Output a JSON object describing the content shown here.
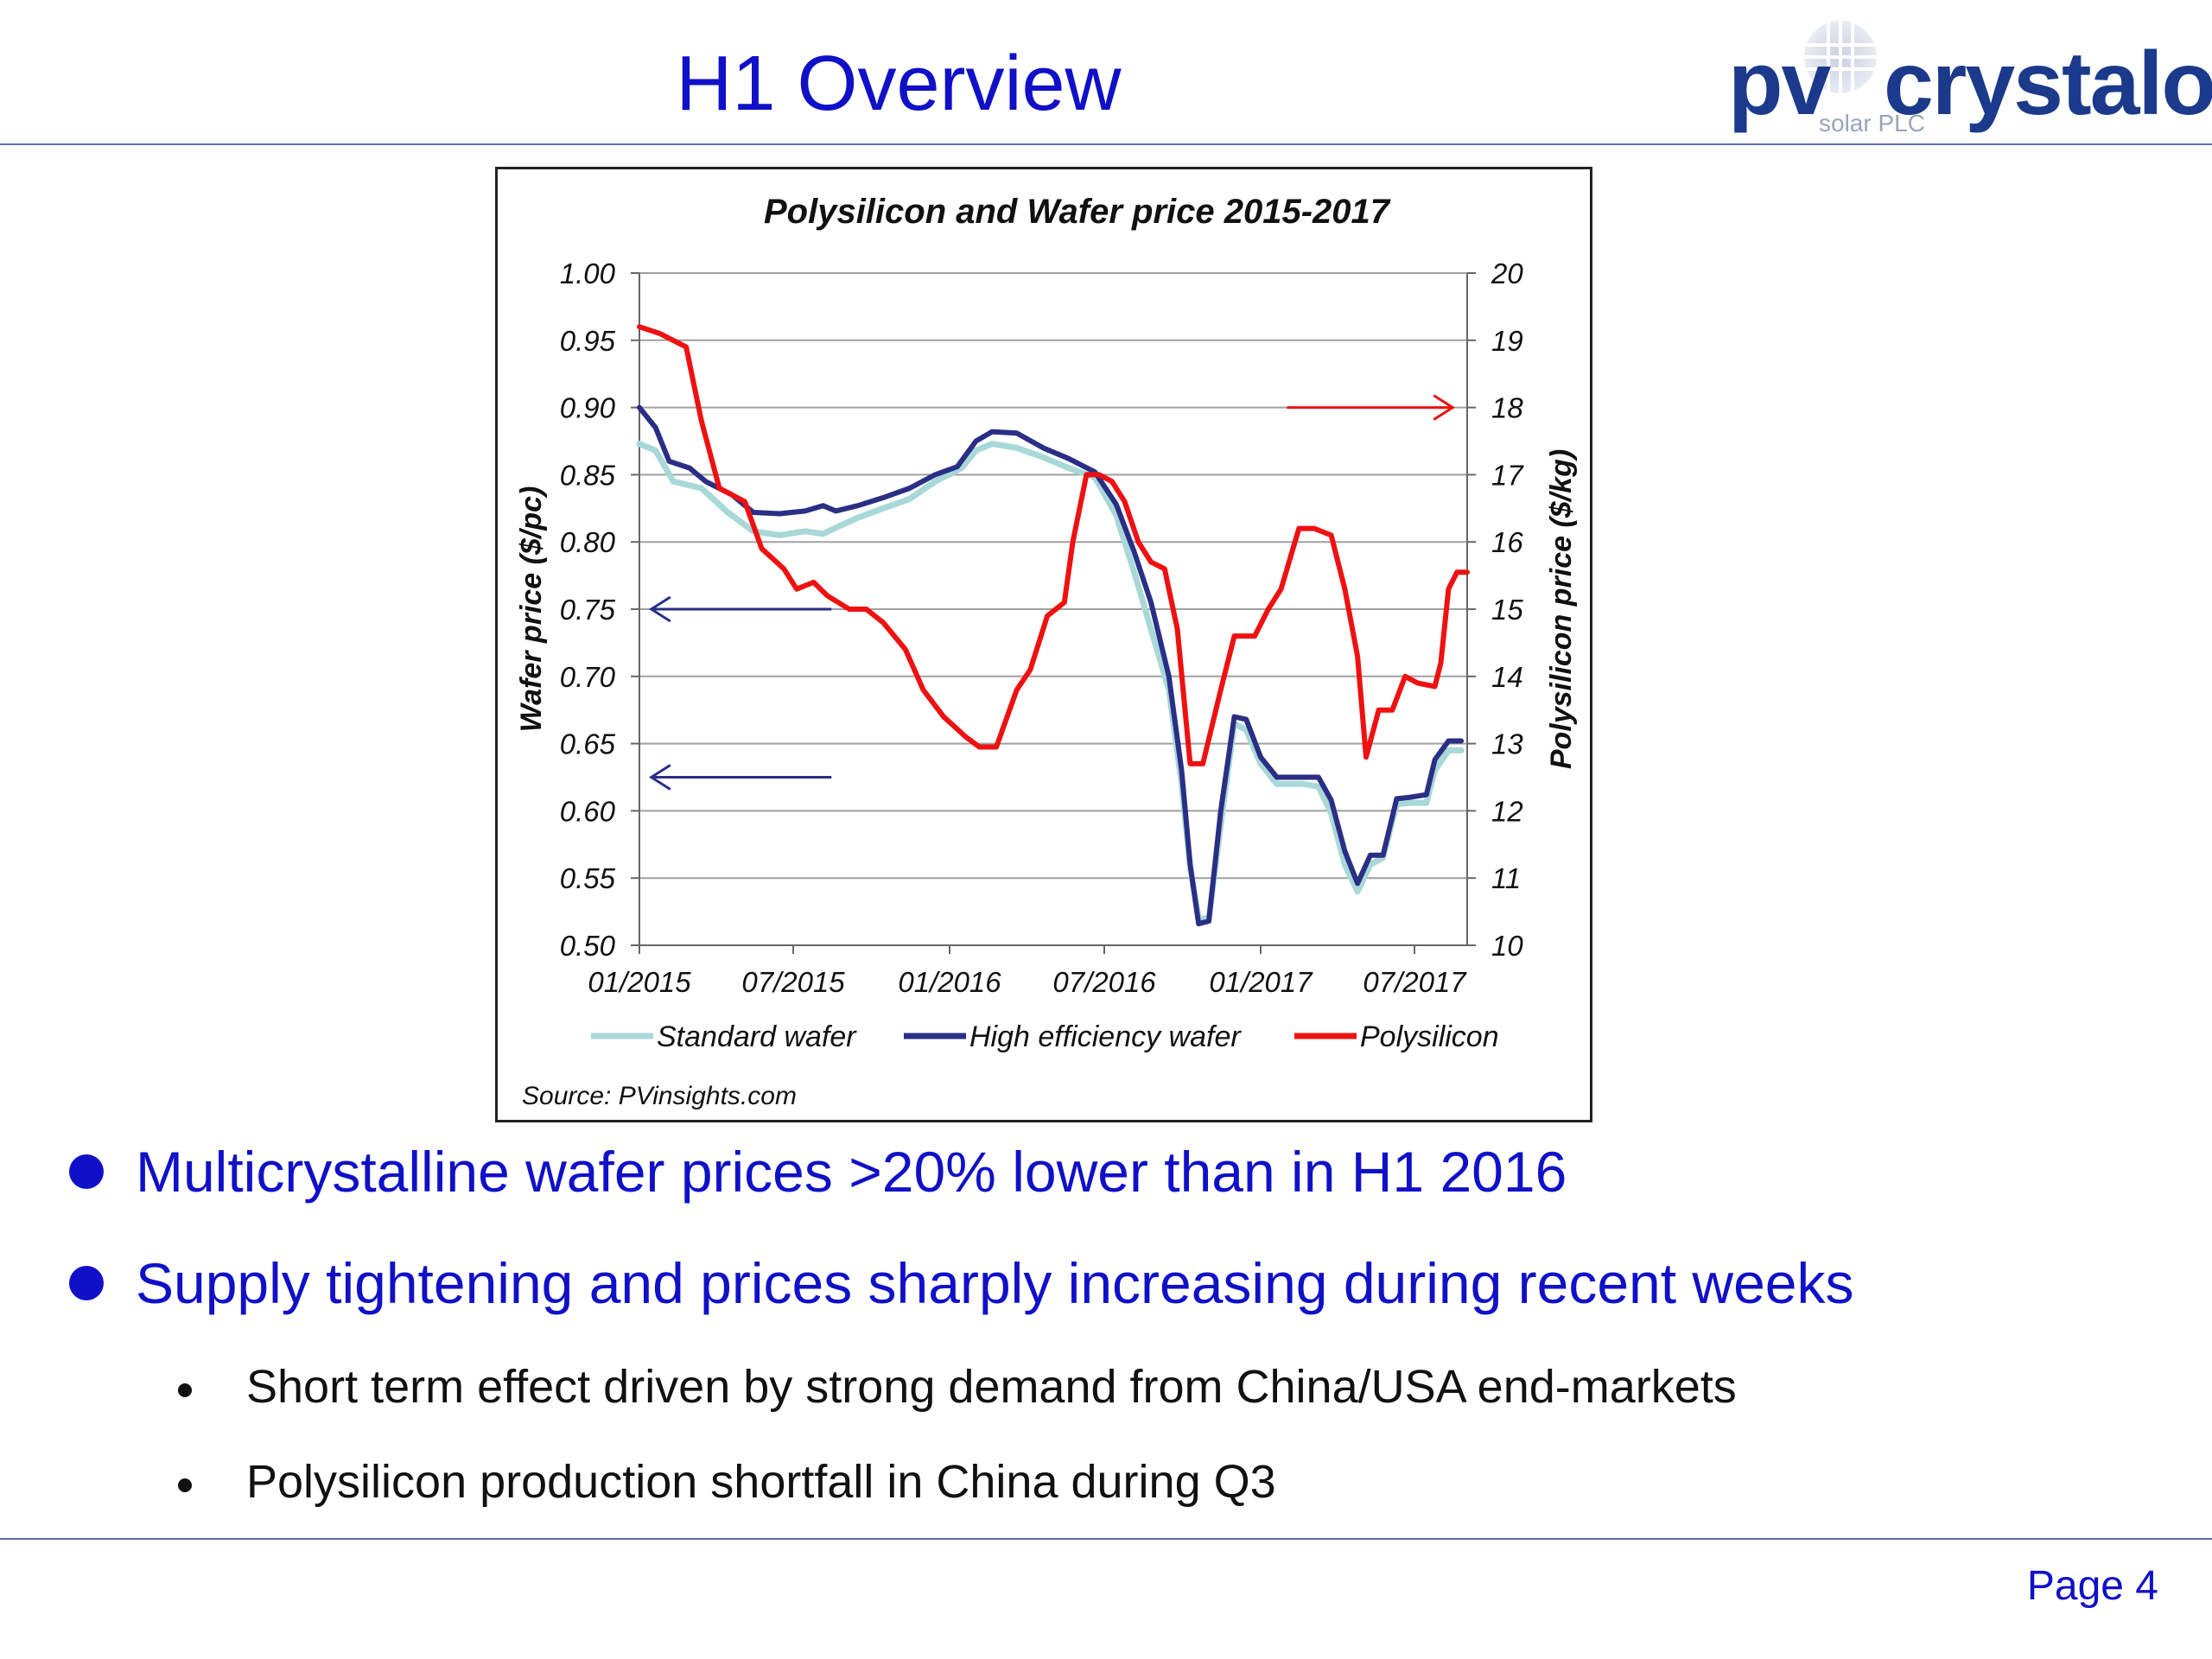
{
  "header": {
    "title": "H1 Overview",
    "logo_text_pv": "pv",
    "logo_text_main": "crystalox",
    "logo_subtext": "solar PLC"
  },
  "colors": {
    "title_blue": "#1010c8",
    "standard_wafer": "#a8d8d8",
    "high_efficiency_wafer": "#2a2f85",
    "polysilicon": "#ee1111",
    "arrow_left": "#2a2f85",
    "arrow_right": "#ee1111",
    "gridline": "#a0a0a0"
  },
  "chart_data": {
    "type": "line",
    "title": "Polysilicon and Wafer price 2015-2017",
    "ylabel": "Wafer price ($/pc)",
    "y2label": "Polysilicon price ($/kg)",
    "ylim": [
      0.5,
      1.0
    ],
    "y2lim": [
      10,
      20
    ],
    "xlim": [
      "2015-01",
      "2017-09"
    ],
    "x_ticks": [
      "01/2015",
      "07/2015",
      "01/2016",
      "07/2016",
      "01/2017",
      "07/2017"
    ],
    "x_tick_dates": [
      "2015-01",
      "2015-07",
      "2016-01",
      "2016-07",
      "2017-01",
      "2017-07"
    ],
    "y_ticks": [
      "0.50",
      "0.55",
      "0.60",
      "0.65",
      "0.70",
      "0.75",
      "0.80",
      "0.85",
      "0.90",
      "0.95",
      "1.00"
    ],
    "y2_ticks": [
      "10",
      "11",
      "12",
      "13",
      "14",
      "15",
      "16",
      "17",
      "18",
      "19",
      "20"
    ],
    "grid": true,
    "legend_position": "bottom",
    "source": "Source: PVinsights.com",
    "series": [
      {
        "name": "Standard wafer",
        "axis": "left",
        "points": [
          [
            "2015-01-01",
            0.873
          ],
          [
            "2015-01-20",
            0.868
          ],
          [
            "2015-02-10",
            0.845
          ],
          [
            "2015-03-15",
            0.84
          ],
          [
            "2015-04-15",
            0.822
          ],
          [
            "2015-05-15",
            0.808
          ],
          [
            "2015-06-15",
            0.805
          ],
          [
            "2015-07-15",
            0.808
          ],
          [
            "2015-08-05",
            0.806
          ],
          [
            "2015-08-25",
            0.812
          ],
          [
            "2015-09-15",
            0.818
          ],
          [
            "2015-10-15",
            0.825
          ],
          [
            "2015-11-15",
            0.832
          ],
          [
            "2015-12-15",
            0.845
          ],
          [
            "2016-01-15",
            0.855
          ],
          [
            "2016-02-01",
            0.868
          ],
          [
            "2016-02-20",
            0.873
          ],
          [
            "2016-03-20",
            0.87
          ],
          [
            "2016-04-20",
            0.863
          ],
          [
            "2016-05-20",
            0.855
          ],
          [
            "2016-06-20",
            0.848
          ],
          [
            "2016-07-15",
            0.82
          ],
          [
            "2016-08-05",
            0.778
          ],
          [
            "2016-08-25",
            0.735
          ],
          [
            "2016-09-15",
            0.69
          ],
          [
            "2016-09-30",
            0.62
          ],
          [
            "2016-10-10",
            0.558
          ],
          [
            "2016-10-20",
            0.52
          ],
          [
            "2016-11-01",
            0.52
          ],
          [
            "2016-11-15",
            0.59
          ],
          [
            "2016-12-01",
            0.665
          ],
          [
            "2016-12-15",
            0.66
          ],
          [
            "2017-01-01",
            0.635
          ],
          [
            "2017-01-20",
            0.62
          ],
          [
            "2017-02-20",
            0.62
          ],
          [
            "2017-03-10",
            0.618
          ],
          [
            "2017-03-25",
            0.598
          ],
          [
            "2017-04-10",
            0.56
          ],
          [
            "2017-04-25",
            0.54
          ],
          [
            "2017-05-10",
            0.56
          ],
          [
            "2017-05-25",
            0.565
          ],
          [
            "2017-06-10",
            0.605
          ],
          [
            "2017-06-25",
            0.606
          ],
          [
            "2017-07-15",
            0.606
          ],
          [
            "2017-07-25",
            0.63
          ],
          [
            "2017-08-10",
            0.645
          ],
          [
            "2017-08-25",
            0.645
          ]
        ]
      },
      {
        "name": "High efficiency wafer",
        "axis": "left",
        "points": [
          [
            "2015-01-01",
            0.9
          ],
          [
            "2015-01-20",
            0.885
          ],
          [
            "2015-02-05",
            0.86
          ],
          [
            "2015-03-01",
            0.855
          ],
          [
            "2015-03-20",
            0.845
          ],
          [
            "2015-04-20",
            0.835
          ],
          [
            "2015-05-15",
            0.822
          ],
          [
            "2015-06-15",
            0.821
          ],
          [
            "2015-07-15",
            0.823
          ],
          [
            "2015-08-05",
            0.827
          ],
          [
            "2015-08-20",
            0.823
          ],
          [
            "2015-09-15",
            0.827
          ],
          [
            "2015-10-15",
            0.833
          ],
          [
            "2015-11-15",
            0.84
          ],
          [
            "2015-12-15",
            0.85
          ],
          [
            "2016-01-10",
            0.856
          ],
          [
            "2016-02-01",
            0.875
          ],
          [
            "2016-02-20",
            0.882
          ],
          [
            "2016-03-20",
            0.881
          ],
          [
            "2016-04-20",
            0.87
          ],
          [
            "2016-05-20",
            0.862
          ],
          [
            "2016-06-20",
            0.852
          ],
          [
            "2016-07-15",
            0.828
          ],
          [
            "2016-08-05",
            0.793
          ],
          [
            "2016-08-25",
            0.755
          ],
          [
            "2016-09-15",
            0.7
          ],
          [
            "2016-09-30",
            0.63
          ],
          [
            "2016-10-10",
            0.56
          ],
          [
            "2016-10-20",
            0.516
          ],
          [
            "2016-11-01",
            0.518
          ],
          [
            "2016-11-15",
            0.6
          ],
          [
            "2016-12-01",
            0.67
          ],
          [
            "2016-12-15",
            0.668
          ],
          [
            "2017-01-01",
            0.64
          ],
          [
            "2017-01-20",
            0.625
          ],
          [
            "2017-02-20",
            0.625
          ],
          [
            "2017-03-10",
            0.625
          ],
          [
            "2017-03-25",
            0.608
          ],
          [
            "2017-04-10",
            0.57
          ],
          [
            "2017-04-25",
            0.546
          ],
          [
            "2017-05-10",
            0.567
          ],
          [
            "2017-05-25",
            0.567
          ],
          [
            "2017-06-10",
            0.609
          ],
          [
            "2017-06-25",
            0.61
          ],
          [
            "2017-07-15",
            0.612
          ],
          [
            "2017-07-25",
            0.638
          ],
          [
            "2017-08-10",
            0.652
          ],
          [
            "2017-08-25",
            0.652
          ]
        ]
      },
      {
        "name": "Polysilicon",
        "axis": "right",
        "points": [
          [
            "2015-01-01",
            19.2
          ],
          [
            "2015-01-25",
            19.1
          ],
          [
            "2015-02-25",
            18.9
          ],
          [
            "2015-03-15",
            17.8
          ],
          [
            "2015-04-05",
            16.8
          ],
          [
            "2015-05-05",
            16.6
          ],
          [
            "2015-05-25",
            15.9
          ],
          [
            "2015-06-20",
            15.6
          ],
          [
            "2015-07-05",
            15.3
          ],
          [
            "2015-07-25",
            15.4
          ],
          [
            "2015-08-10",
            15.2
          ],
          [
            "2015-09-05",
            15.0
          ],
          [
            "2015-09-25",
            15.0
          ],
          [
            "2015-10-15",
            14.8
          ],
          [
            "2015-11-10",
            14.4
          ],
          [
            "2015-12-01",
            13.8
          ],
          [
            "2015-12-25",
            13.4
          ],
          [
            "2016-01-20",
            13.1
          ],
          [
            "2016-02-05",
            12.95
          ],
          [
            "2016-02-25",
            12.95
          ],
          [
            "2016-03-20",
            13.8
          ],
          [
            "2016-04-05",
            14.1
          ],
          [
            "2016-04-25",
            14.9
          ],
          [
            "2016-05-15",
            15.1
          ],
          [
            "2016-05-25",
            16.0
          ],
          [
            "2016-06-10",
            17.0
          ],
          [
            "2016-06-25",
            17.0
          ],
          [
            "2016-07-10",
            16.9
          ],
          [
            "2016-07-25",
            16.6
          ],
          [
            "2016-08-10",
            16.0
          ],
          [
            "2016-08-25",
            15.7
          ],
          [
            "2016-09-10",
            15.6
          ],
          [
            "2016-09-25",
            14.7
          ],
          [
            "2016-10-10",
            12.7
          ],
          [
            "2016-10-25",
            12.7
          ],
          [
            "2016-11-15",
            13.8
          ],
          [
            "2016-12-01",
            14.6
          ],
          [
            "2016-12-25",
            14.6
          ],
          [
            "2017-01-10",
            15.0
          ],
          [
            "2017-01-25",
            15.3
          ],
          [
            "2017-02-15",
            16.2
          ],
          [
            "2017-03-05",
            16.2
          ],
          [
            "2017-03-25",
            16.1
          ],
          [
            "2017-04-10",
            15.3
          ],
          [
            "2017-04-25",
            14.3
          ],
          [
            "2017-05-05",
            12.8
          ],
          [
            "2017-05-20",
            13.5
          ],
          [
            "2017-06-05",
            13.5
          ],
          [
            "2017-06-20",
            14.0
          ],
          [
            "2017-07-05",
            13.9
          ],
          [
            "2017-07-25",
            13.85
          ],
          [
            "2017-08-01",
            14.2
          ],
          [
            "2017-08-10",
            15.3
          ],
          [
            "2017-08-20",
            15.55
          ],
          [
            "2017-09-01",
            15.55
          ]
        ]
      }
    ],
    "annotations": [
      {
        "type": "arrow",
        "direction": "left",
        "color": "#2a2f85",
        "axis": "left",
        "y": 0.75,
        "x_from": "2015-08-15",
        "x_to": "2015-01-15"
      },
      {
        "type": "arrow",
        "direction": "left",
        "color": "#2a2f85",
        "axis": "left",
        "y": 0.625,
        "x_from": "2015-08-15",
        "x_to": "2015-01-15"
      },
      {
        "type": "arrow",
        "direction": "right",
        "color": "#ee1111",
        "axis": "right",
        "y": 18,
        "x_from": "2017-02-01",
        "x_to": "2017-08-15"
      }
    ]
  },
  "bullets": [
    {
      "text": "Multicrystalline wafer prices >20% lower than in H1 2016",
      "level": 1
    },
    {
      "text": "Supply tightening and prices sharply increasing during recent weeks",
      "level": 1
    },
    {
      "text": "Short term effect driven by strong demand from China/USA end-markets",
      "level": 2
    },
    {
      "text": "Polysilicon production shortfall in China during Q3",
      "level": 2
    }
  ],
  "footer": {
    "page_label": "Page 4"
  }
}
